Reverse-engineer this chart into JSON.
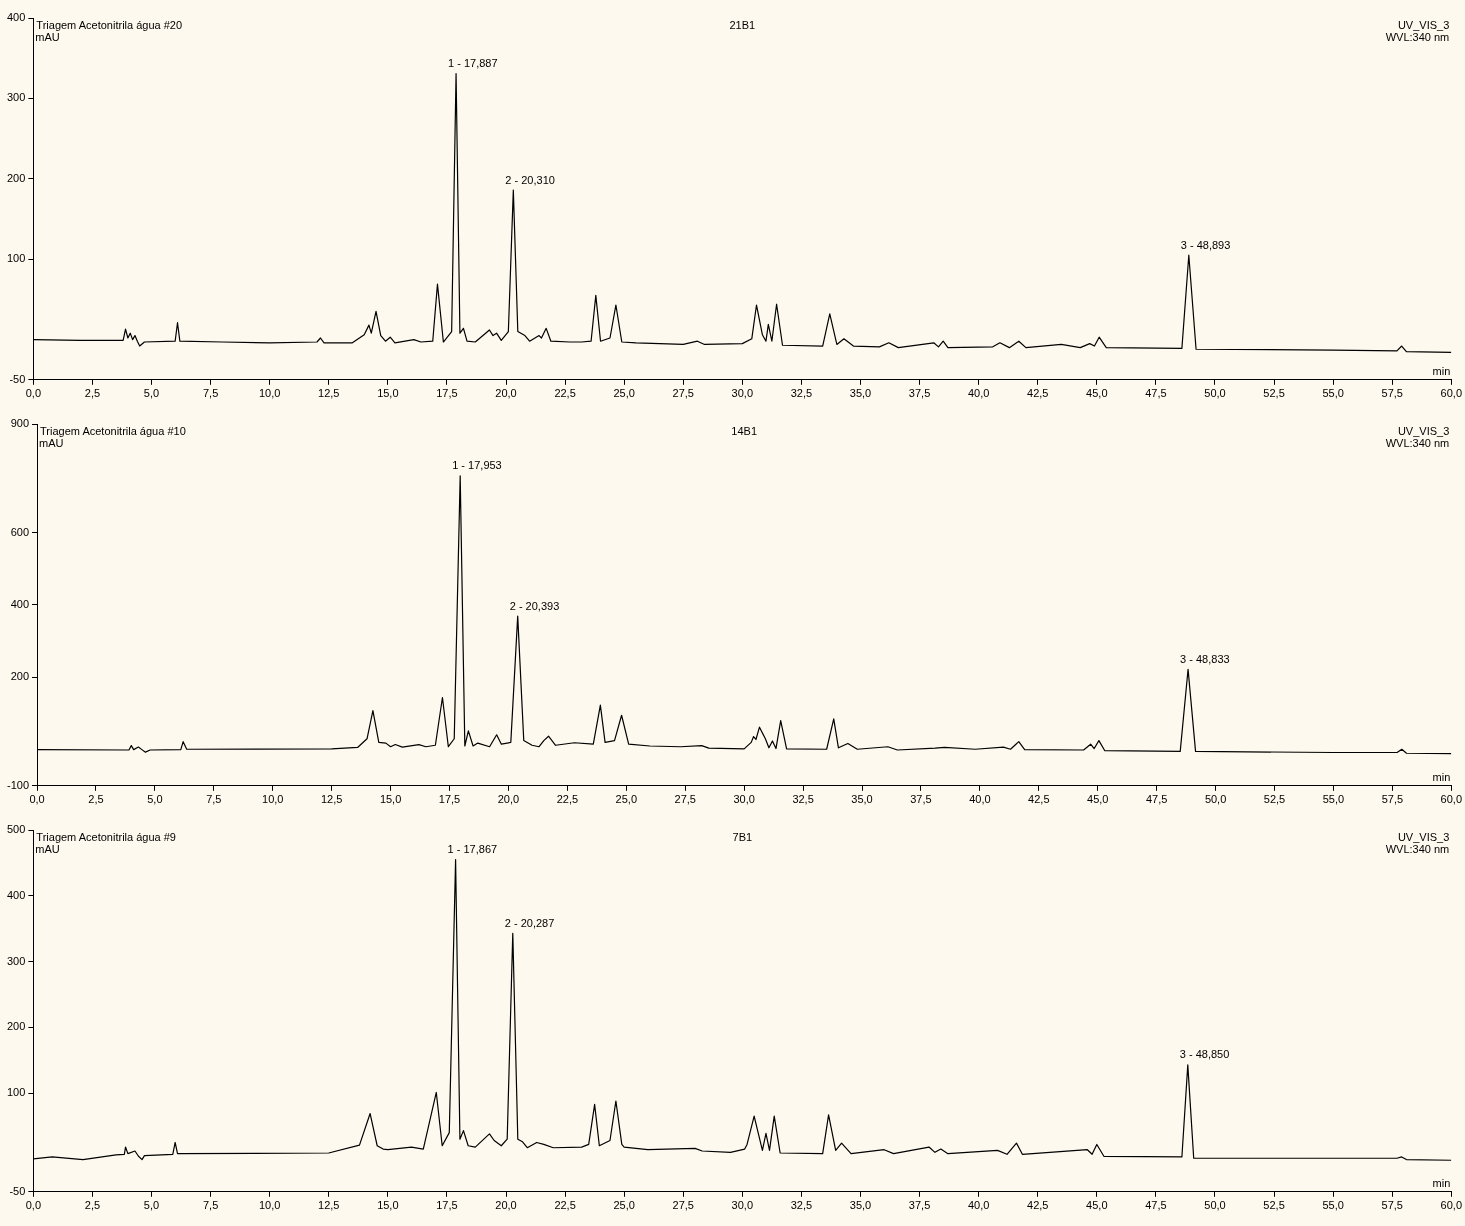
{
  "chart_data": [
    {
      "type": "line",
      "title": "Triagem Acetonitrila água #20",
      "subtitle": "21B1",
      "xlabel": "min",
      "ylabel": "mAU",
      "annotations": [
        "UV_VIS_3",
        "WVL:340 nm",
        {
          "text": "1 - 17,887",
          "x": 17.887,
          "y": 331
        },
        {
          "text": "2 - 20,310",
          "x": 20.31,
          "y": 186
        },
        {
          "text": "3 - 48,893",
          "x": 48.893,
          "y": 105
        }
      ],
      "x": [
        0,
        2,
        3.8,
        3.9,
        4.0,
        4.1,
        4.2,
        4.3,
        4.4,
        4.5,
        4.7,
        6.0,
        6.1,
        6.2,
        8,
        10,
        12.0,
        12.15,
        12.3,
        13.5,
        14.0,
        14.2,
        14.3,
        14.5,
        14.7,
        14.9,
        15.1,
        15.3,
        16.1,
        16.4,
        16.9,
        17.1,
        17.35,
        17.7,
        17.887,
        18.05,
        18.2,
        18.35,
        18.7,
        19.3,
        19.45,
        19.6,
        19.8,
        20.1,
        20.31,
        20.5,
        20.8,
        21.0,
        21.4,
        21.5,
        21.7,
        21.9,
        22.7,
        23.2,
        23.6,
        23.8,
        24.0,
        24.4,
        24.65,
        24.9,
        25.5,
        27.5,
        28.1,
        28.4,
        30.0,
        30.4,
        30.6,
        30.85,
        31.0,
        31.1,
        31.25,
        31.45,
        31.7,
        33.4,
        33.7,
        34.0,
        34.3,
        34.7,
        35.8,
        36.2,
        36.6,
        38.1,
        38.3,
        38.5,
        38.7,
        40.6,
        40.9,
        41.3,
        41.7,
        42.0,
        43.5,
        44.3,
        44.7,
        44.9,
        45.1,
        45.4,
        48.6,
        48.893,
        49.2,
        55,
        57.7,
        57.9,
        58.1,
        60
      ],
      "series": [
        {
          "color": "#000000",
          "values": [
            0,
            -1,
            -1,
            13,
            2,
            8,
            0,
            5,
            -2,
            -8,
            -3,
            -2,
            21,
            -2,
            -3,
            -4,
            -3,
            2,
            -4,
            -4,
            6,
            18,
            8,
            35,
            5,
            -2,
            3,
            -4,
            0,
            -3,
            -2,
            69,
            -3,
            10,
            331,
            8,
            14,
            -2,
            -3,
            12,
            5,
            8,
            -1,
            10,
            186,
            10,
            5,
            -2,
            5,
            2,
            14,
            -2,
            -3,
            -3,
            -2,
            55,
            -2,
            2,
            43,
            -3,
            -4,
            -6,
            -2,
            -6,
            -5,
            1,
            43,
            6,
            -2,
            19,
            -2,
            44,
            -7,
            -8,
            32,
            -6,
            1,
            -8,
            -9,
            -4,
            -10,
            -4,
            -9,
            -2,
            -10,
            -9,
            -4,
            -10,
            -2,
            -10,
            -6,
            -10,
            -5,
            -8,
            3,
            -10,
            -11,
            105,
            -12,
            -13,
            -14,
            -8,
            -15,
            -16
          ]
        }
      ],
      "xlim": [
        0,
        60
      ],
      "ylim": [
        -50,
        400
      ],
      "yticks": [
        -50,
        100,
        200,
        300,
        400
      ],
      "xticks": [
        {
          "value": 0,
          "label": "0,0"
        },
        {
          "value": 2.5,
          "label": "2,5"
        },
        {
          "value": 5,
          "label": "5,0"
        },
        {
          "value": 7.5,
          "label": "7,5"
        },
        {
          "value": 10,
          "label": "10,0"
        },
        {
          "value": 12.5,
          "label": "12,5"
        },
        {
          "value": 15,
          "label": "15,0"
        },
        {
          "value": 17.5,
          "label": "17,5"
        },
        {
          "value": 20,
          "label": "20,0"
        },
        {
          "value": 22.5,
          "label": "22,5"
        },
        {
          "value": 25,
          "label": "25,0"
        },
        {
          "value": 27.5,
          "label": "27,5"
        },
        {
          "value": 30,
          "label": "30,0"
        },
        {
          "value": 32.5,
          "label": "32,5"
        },
        {
          "value": 35,
          "label": "35,0"
        },
        {
          "value": 37.5,
          "label": "37,5"
        },
        {
          "value": 40,
          "label": "40,0"
        },
        {
          "value": 42.5,
          "label": "42,5"
        },
        {
          "value": 45,
          "label": "45,0"
        },
        {
          "value": 47.5,
          "label": "47,5"
        },
        {
          "value": 50,
          "label": "50,0"
        },
        {
          "value": 52.5,
          "label": "52,5"
        },
        {
          "value": 55,
          "label": "55,0"
        },
        {
          "value": 57.5,
          "label": "57,5"
        },
        {
          "value": 60,
          "label": "60,0"
        }
      ],
      "marker": "none",
      "line_style": "solid"
    },
    {
      "type": "line",
      "title": "Triagem Acetonitrila água #10",
      "subtitle": "14B1",
      "xlabel": "min",
      "ylabel": "mAU",
      "annotations": [
        "UV_VIS_3",
        "WVL:340 nm",
        {
          "text": "1 - 17,953",
          "x": 17.953,
          "y": 757
        },
        {
          "text": "2 - 20,393",
          "x": 20.393,
          "y": 369
        },
        {
          "text": "3 - 48,833",
          "x": 48.833,
          "y": 222
        }
      ],
      "x": [
        0,
        3.9,
        4.0,
        4.1,
        4.3,
        4.45,
        4.6,
        4.8,
        6.1,
        6.2,
        6.35,
        12.5,
        13.6,
        14.0,
        14.25,
        14.5,
        14.8,
        15.0,
        15.2,
        15.5,
        16.2,
        16.5,
        16.9,
        17.2,
        17.45,
        17.7,
        17.953,
        18.15,
        18.3,
        18.5,
        18.7,
        19.2,
        19.5,
        19.7,
        20.1,
        20.393,
        20.65,
        21.0,
        21.3,
        21.5,
        21.7,
        22.0,
        22.8,
        23.6,
        23.9,
        24.1,
        24.5,
        24.8,
        25.1,
        26,
        27.3,
        28.2,
        28.5,
        30.0,
        30.3,
        30.4,
        30.5,
        30.65,
        30.9,
        31.05,
        31.2,
        31.35,
        31.55,
        31.8,
        33.5,
        33.8,
        34.0,
        34.4,
        34.8,
        36.1,
        36.5,
        38.1,
        38.5,
        39.8,
        41.0,
        41.3,
        41.65,
        41.9,
        44.4,
        44.7,
        44.85,
        45.05,
        45.3,
        48.5,
        48.833,
        49.15,
        55,
        57.7,
        57.9,
        58.1,
        60
      ],
      "series": [
        {
          "color": "#000000",
          "values": [
            0,
            -1,
            11,
            0,
            7,
            0,
            -7,
            -1,
            0,
            22,
            1,
            2,
            6,
            30,
            108,
            20,
            18,
            8,
            14,
            7,
            14,
            8,
            12,
            144,
            8,
            30,
            757,
            10,
            52,
            10,
            18,
            8,
            41,
            15,
            20,
            369,
            25,
            12,
            8,
            25,
            37,
            12,
            19,
            15,
            123,
            20,
            25,
            95,
            15,
            10,
            8,
            11,
            4,
            2,
            20,
            36,
            28,
            62,
            30,
            5,
            24,
            3,
            80,
            2,
            1,
            85,
            5,
            17,
            1,
            8,
            -1,
            4,
            6,
            1,
            7,
            1,
            22,
            0,
            -1,
            15,
            3,
            25,
            -3,
            -5,
            222,
            -5,
            -8,
            -8,
            1,
            -10,
            -11
          ]
        }
      ],
      "xlim": [
        0,
        60
      ],
      "ylim": [
        -100,
        900
      ],
      "yticks": [
        -100,
        200,
        400,
        600,
        900
      ],
      "xticks": [
        {
          "value": 0,
          "label": "0,0"
        },
        {
          "value": 2.5,
          "label": "2,5"
        },
        {
          "value": 5,
          "label": "5,0"
        },
        {
          "value": 7.5,
          "label": "7,5"
        },
        {
          "value": 10,
          "label": "10,0"
        },
        {
          "value": 12.5,
          "label": "12,5"
        },
        {
          "value": 15,
          "label": "15,0"
        },
        {
          "value": 17.5,
          "label": "17,5"
        },
        {
          "value": 20,
          "label": "20,0"
        },
        {
          "value": 22.5,
          "label": "22,5"
        },
        {
          "value": 25,
          "label": "25,0"
        },
        {
          "value": 27.5,
          "label": "27,5"
        },
        {
          "value": 30,
          "label": "30,0"
        },
        {
          "value": 32.5,
          "label": "32,5"
        },
        {
          "value": 35,
          "label": "35,0"
        },
        {
          "value": 37.5,
          "label": "37,5"
        },
        {
          "value": 40,
          "label": "40,0"
        },
        {
          "value": 42.5,
          "label": "42,5"
        },
        {
          "value": 45,
          "label": "45,0"
        },
        {
          "value": 47.5,
          "label": "47,5"
        },
        {
          "value": 50,
          "label": "50,0"
        },
        {
          "value": 52.5,
          "label": "52,5"
        },
        {
          "value": 55,
          "label": "55,0"
        },
        {
          "value": 57.5,
          "label": "57,5"
        },
        {
          "value": 60,
          "label": "60,0"
        }
      ],
      "marker": "none",
      "line_style": "solid"
    },
    {
      "type": "line",
      "title": "Triagem Acetonitrila água #9",
      "subtitle": "7B1",
      "xlabel": "min",
      "ylabel": "mAU",
      "annotations": [
        "UV_VIS_3",
        "WVL:340 nm",
        {
          "text": "1 - 17,867",
          "x": 17.867,
          "y": 455
        },
        {
          "text": "2 - 20,287",
          "x": 20.287,
          "y": 343
        },
        {
          "text": "3 - 48,850",
          "x": 48.85,
          "y": 143
        }
      ],
      "x": [
        0,
        0.8,
        2.1,
        3.5,
        3.85,
        3.9,
        4.0,
        4.3,
        4.45,
        4.6,
        4.7,
        5.9,
        6.0,
        6.1,
        6.2,
        12.5,
        13.8,
        14.25,
        14.55,
        14.8,
        15.0,
        16.0,
        16.5,
        17.05,
        17.3,
        17.6,
        17.867,
        18.05,
        18.2,
        18.4,
        18.7,
        19.3,
        19.5,
        19.8,
        20.05,
        20.287,
        20.5,
        20.7,
        20.9,
        21.3,
        21.6,
        22.0,
        23.2,
        23.5,
        23.75,
        23.95,
        24.4,
        24.65,
        24.9,
        25.0,
        26,
        28,
        28.3,
        29.5,
        30.1,
        30.2,
        30.5,
        30.85,
        31.0,
        31.15,
        31.35,
        31.6,
        33.4,
        33.65,
        33.95,
        34.2,
        34.6,
        36.0,
        36.4,
        37.9,
        38.15,
        38.4,
        38.7,
        40.8,
        41.2,
        41.6,
        41.85,
        44.6,
        44.8,
        45.0,
        45.3,
        48.6,
        48.85,
        49.1,
        57.7,
        57.9,
        58.1,
        60
      ],
      "series": [
        {
          "color": "#000000",
          "values": [
            0,
            3,
            -1,
            6,
            7,
            18,
            8,
            12,
            4,
            -1,
            5,
            7,
            25,
            8,
            8,
            9,
            21,
            69,
            20,
            15,
            14,
            18,
            15,
            101,
            20,
            40,
            455,
            30,
            43,
            20,
            18,
            38,
            28,
            20,
            30,
            343,
            30,
            26,
            17,
            25,
            22,
            17,
            18,
            22,
            83,
            20,
            28,
            88,
            22,
            18,
            14,
            16,
            12,
            10,
            15,
            22,
            65,
            13,
            39,
            13,
            65,
            9,
            8,
            67,
            13,
            24,
            8,
            14,
            8,
            18,
            10,
            15,
            8,
            13,
            7,
            24,
            7,
            14,
            7,
            22,
            4,
            3,
            143,
            1,
            1,
            3,
            -1,
            -2
          ]
        }
      ],
      "xlim": [
        0,
        60
      ],
      "ylim": [
        -50,
        500
      ],
      "yticks": [
        -50,
        100,
        200,
        300,
        400,
        500
      ],
      "xticks": [
        {
          "value": 0,
          "label": "0,0"
        },
        {
          "value": 2.5,
          "label": "2,5"
        },
        {
          "value": 5,
          "label": "5,0"
        },
        {
          "value": 7.5,
          "label": "7,5"
        },
        {
          "value": 10,
          "label": "10,0"
        },
        {
          "value": 12.5,
          "label": "12,5"
        },
        {
          "value": 15,
          "label": "15,0"
        },
        {
          "value": 17.5,
          "label": "17,5"
        },
        {
          "value": 20,
          "label": "20,0"
        },
        {
          "value": 22.5,
          "label": "22,5"
        },
        {
          "value": 25,
          "label": "25,0"
        },
        {
          "value": 27.5,
          "label": "27,5"
        },
        {
          "value": 30,
          "label": "30,0"
        },
        {
          "value": 32.5,
          "label": "32,5"
        },
        {
          "value": 35,
          "label": "35,0"
        },
        {
          "value": 37.5,
          "label": "37,5"
        },
        {
          "value": 40,
          "label": "40,0"
        },
        {
          "value": 42.5,
          "label": "42,5"
        },
        {
          "value": 45,
          "label": "45,0"
        },
        {
          "value": 47.5,
          "label": "47,5"
        },
        {
          "value": 50,
          "label": "50,0"
        },
        {
          "value": 52.5,
          "label": "52,5"
        },
        {
          "value": 55,
          "label": "55,0"
        },
        {
          "value": 57.5,
          "label": "57,5"
        },
        {
          "value": 60,
          "label": "60,0"
        }
      ],
      "marker": "none",
      "line_style": "solid"
    }
  ]
}
